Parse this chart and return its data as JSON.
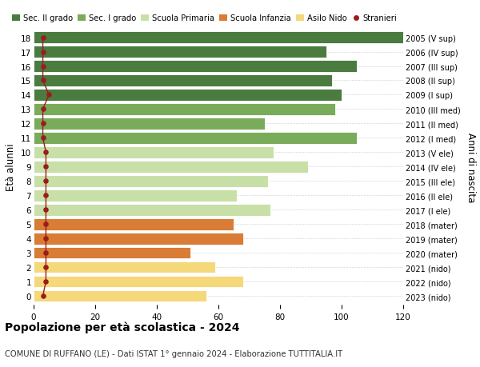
{
  "ages": [
    18,
    17,
    16,
    15,
    14,
    13,
    12,
    11,
    10,
    9,
    8,
    7,
    6,
    5,
    4,
    3,
    2,
    1,
    0
  ],
  "right_labels": [
    "2005 (V sup)",
    "2006 (IV sup)",
    "2007 (III sup)",
    "2008 (II sup)",
    "2009 (I sup)",
    "2010 (III med)",
    "2011 (II med)",
    "2012 (I med)",
    "2013 (V ele)",
    "2014 (IV ele)",
    "2015 (III ele)",
    "2016 (II ele)",
    "2017 (I ele)",
    "2018 (mater)",
    "2019 (mater)",
    "2020 (mater)",
    "2021 (nido)",
    "2022 (nido)",
    "2023 (nido)"
  ],
  "bar_values": [
    120,
    95,
    105,
    97,
    100,
    98,
    75,
    105,
    78,
    89,
    76,
    66,
    77,
    65,
    68,
    51,
    59,
    68,
    56
  ],
  "bar_colors": [
    "#4a7c40",
    "#4a7c40",
    "#4a7c40",
    "#4a7c40",
    "#4a7c40",
    "#7aab5a",
    "#7aab5a",
    "#7aab5a",
    "#c8e0a8",
    "#c8e0a8",
    "#c8e0a8",
    "#c8e0a8",
    "#c8e0a8",
    "#d97c35",
    "#d97c35",
    "#d97c35",
    "#f5d87a",
    "#f5d87a",
    "#f5d87a"
  ],
  "stranieri_values": [
    3,
    3,
    3,
    3,
    5,
    3,
    3,
    3,
    4,
    4,
    4,
    4,
    4,
    4,
    4,
    4,
    4,
    4,
    3
  ],
  "stranieri_color": "#9b1c1c",
  "stranieri_line_color": "#9b1c1c",
  "legend_labels": [
    "Sec. II grado",
    "Sec. I grado",
    "Scuola Primaria",
    "Scuola Infanzia",
    "Asilo Nido",
    "Stranieri"
  ],
  "legend_colors": [
    "#4a7c40",
    "#7aab5a",
    "#c8e0a8",
    "#d97c35",
    "#f5d87a",
    "#9b1c1c"
  ],
  "ylabel_left": "Età alunni",
  "ylabel_right": "Anni di nascita",
  "xlim": [
    0,
    120
  ],
  "xticks": [
    0,
    20,
    40,
    60,
    80,
    100,
    120
  ],
  "title": "Popolazione per età scolastica - 2024",
  "subtitle": "COMUNE DI RUFFANO (LE) - Dati ISTAT 1° gennaio 2024 - Elaborazione TUTTITALIA.IT",
  "bar_height": 0.82
}
